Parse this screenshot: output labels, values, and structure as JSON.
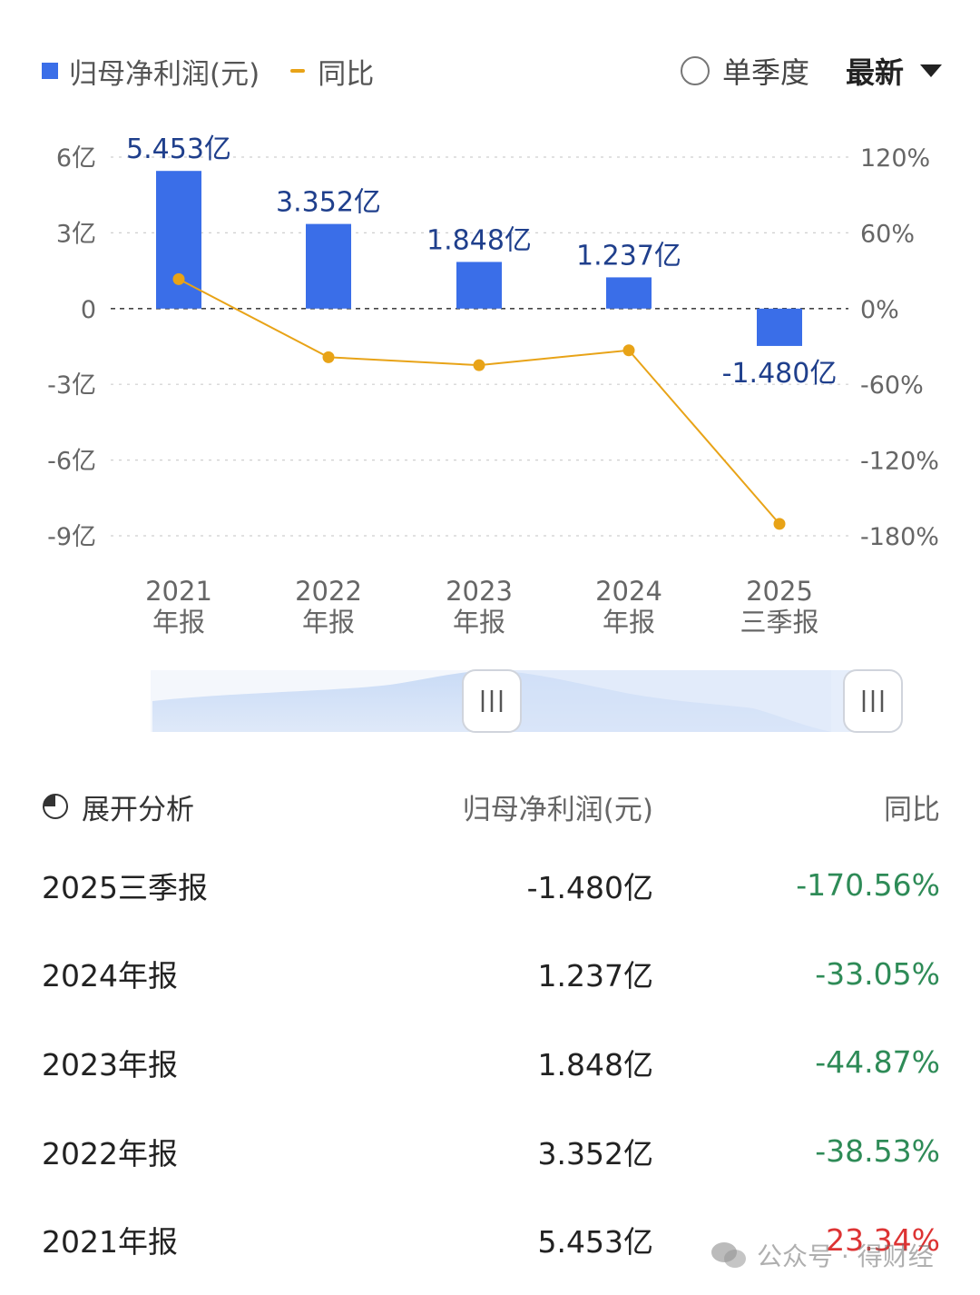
{
  "legend": {
    "bar_label": "归母净利润(元)",
    "line_label": "同比"
  },
  "controls": {
    "single_quarter_label": "单季度",
    "latest_label": "最新"
  },
  "colors": {
    "bar": "#3a6ee8",
    "line": "#e8a317",
    "negative": "#2e8b57",
    "positive": "#d33333"
  },
  "chart_data": {
    "type": "bar",
    "categories": [
      {
        "year": "2021",
        "period": "年报"
      },
      {
        "year": "2022",
        "period": "年报"
      },
      {
        "year": "2023",
        "period": "年报"
      },
      {
        "year": "2024",
        "period": "年报"
      },
      {
        "year": "2025",
        "period": "三季报"
      }
    ],
    "series": [
      {
        "name": "归母净利润(元)",
        "type": "bar",
        "values": [
          5.453,
          3.352,
          1.848,
          1.237,
          -1.48
        ],
        "labels": [
          "5.453亿",
          "3.352亿",
          "1.848亿",
          "1.237亿",
          "-1.480亿"
        ]
      },
      {
        "name": "同比",
        "type": "line",
        "values": [
          23.34,
          -38.53,
          -44.87,
          -33.05,
          -170.56
        ]
      }
    ],
    "y_left": {
      "ticks": [
        6,
        3,
        0,
        -3,
        -6,
        -9
      ],
      "tick_labels": [
        "6亿",
        "3亿",
        "0",
        "-3亿",
        "-6亿",
        "-9亿"
      ],
      "range": [
        -9,
        6
      ]
    },
    "y_right": {
      "ticks": [
        120,
        60,
        0,
        -60,
        -120,
        -180
      ],
      "tick_labels": [
        "120%",
        "60%",
        "0%",
        "-60%",
        "-120%",
        "-180%"
      ],
      "range": [
        -180,
        120
      ]
    },
    "grid": true,
    "legend_position": "top-left"
  },
  "table": {
    "analysis_label": "展开分析",
    "col_value": "归母净利润(元)",
    "col_yoy": "同比",
    "rows": [
      {
        "period": "2025三季报",
        "value": "-1.480亿",
        "yoy": "-170.56%"
      },
      {
        "period": "2024年报",
        "value": "1.237亿",
        "yoy": "-33.05%"
      },
      {
        "period": "2023年报",
        "value": "1.848亿",
        "yoy": "-44.87%"
      },
      {
        "period": "2022年报",
        "value": "3.352亿",
        "yoy": "-38.53%"
      },
      {
        "period": "2021年报",
        "value": "5.453亿",
        "yoy": "23.34%"
      }
    ]
  },
  "watermark": {
    "text": "公众号 · 得财经"
  }
}
